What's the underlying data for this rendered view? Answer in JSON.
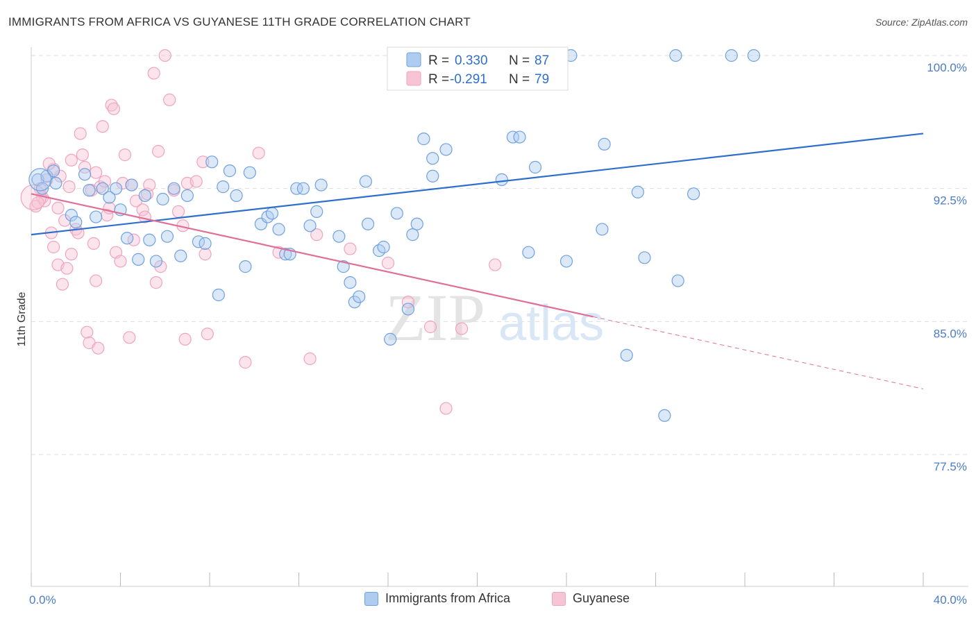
{
  "title": "IMMIGRANTS FROM AFRICA VS GUYANESE 11TH GRADE CORRELATION CHART",
  "source": "Source: ZipAtlas.com",
  "watermark": {
    "zip": "ZIP",
    "atlas": "atlas"
  },
  "colors": {
    "blue": "#6fa0e0",
    "blue_fill": "#aecbf0",
    "blue_line": "#2e6fcc",
    "pink": "#f0a3bd",
    "pink_fill": "#f7c4d5",
    "pink_line": "#e06f98",
    "tick": "#4a7cc9",
    "grid": "#dddddd"
  },
  "legend": [
    {
      "r_label": "R =",
      "r_value": "0.330",
      "n_label": "N =",
      "n_value": "87"
    },
    {
      "r_label": "R =",
      "r_value": "-0.291",
      "n_label": "N =",
      "n_value": "79"
    }
  ],
  "chart_data": {
    "type": "scatter",
    "title": "IMMIGRANTS FROM AFRICA VS GUYANESE 11TH GRADE CORRELATION CHART",
    "xlabel": "",
    "ylabel": "11th Grade",
    "xlim": [
      0,
      40
    ],
    "ylim": [
      71,
      100.5
    ],
    "x_tick_labels": [
      "0.0%",
      "40.0%"
    ],
    "y_ticks": [
      77.5,
      85.0,
      92.5,
      100.0
    ],
    "y_tick_labels": [
      "77.5%",
      "85.0%",
      "92.5%",
      "100.0%"
    ],
    "grid": true,
    "legend_position": "top-center",
    "series": [
      {
        "name": "Immigrants from Africa",
        "trend": {
          "x": [
            0,
            40
          ],
          "y": [
            89.9,
            95.6
          ],
          "dashed_from": null
        },
        "points": [
          [
            0.3,
            93.0
          ],
          [
            0.5,
            92.5
          ],
          [
            0.7,
            93.2
          ],
          [
            1.0,
            93.5
          ],
          [
            1.1,
            92.8
          ],
          [
            1.8,
            91.0
          ],
          [
            2.0,
            90.6
          ],
          [
            2.4,
            93.3
          ],
          [
            2.6,
            92.4
          ],
          [
            2.9,
            90.9
          ],
          [
            3.2,
            92.5
          ],
          [
            3.5,
            92.0
          ],
          [
            3.8,
            92.5
          ],
          [
            4.0,
            91.3
          ],
          [
            4.3,
            89.7
          ],
          [
            4.5,
            92.7
          ],
          [
            4.8,
            88.5
          ],
          [
            5.1,
            92.1
          ],
          [
            5.3,
            89.6
          ],
          [
            5.6,
            88.4
          ],
          [
            5.9,
            91.9
          ],
          [
            6.1,
            89.8
          ],
          [
            6.4,
            92.5
          ],
          [
            6.7,
            88.7
          ],
          [
            7.0,
            92.1
          ],
          [
            7.5,
            89.5
          ],
          [
            7.8,
            89.4
          ],
          [
            8.1,
            94.0
          ],
          [
            8.4,
            86.5
          ],
          [
            8.6,
            92.6
          ],
          [
            8.9,
            93.5
          ],
          [
            9.2,
            92.1
          ],
          [
            9.6,
            88.1
          ],
          [
            9.8,
            93.4
          ],
          [
            10.3,
            90.5
          ],
          [
            10.6,
            90.9
          ],
          [
            10.8,
            91.1
          ],
          [
            11.1,
            90.2
          ],
          [
            11.4,
            88.8
          ],
          [
            11.6,
            88.8
          ],
          [
            11.9,
            92.5
          ],
          [
            12.2,
            92.5
          ],
          [
            12.5,
            90.4
          ],
          [
            12.8,
            91.2
          ],
          [
            13.0,
            92.7
          ],
          [
            13.8,
            89.8
          ],
          [
            14.0,
            88.1
          ],
          [
            14.3,
            87.2
          ],
          [
            14.5,
            86.1
          ],
          [
            14.7,
            86.4
          ],
          [
            15.0,
            92.9
          ],
          [
            15.1,
            90.5
          ],
          [
            15.6,
            89.0
          ],
          [
            15.8,
            89.2
          ],
          [
            16.1,
            84.0
          ],
          [
            16.4,
            91.1
          ],
          [
            16.9,
            85.7
          ],
          [
            17.1,
            89.9
          ],
          [
            17.3,
            90.5
          ],
          [
            17.6,
            95.3
          ],
          [
            18.0,
            93.2
          ],
          [
            18.0,
            94.2
          ],
          [
            18.6,
            94.7
          ],
          [
            18.9,
            100.0
          ],
          [
            19.0,
            100.0
          ],
          [
            19.0,
            100.0
          ],
          [
            19.0,
            100.0
          ],
          [
            19.0,
            100.0
          ],
          [
            21.1,
            93.0
          ],
          [
            21.6,
            95.4
          ],
          [
            21.9,
            95.4
          ],
          [
            22.3,
            88.9
          ],
          [
            22.6,
            93.7
          ],
          [
            22.7,
            100.0
          ],
          [
            24.0,
            88.4
          ],
          [
            24.2,
            100.0
          ],
          [
            25.6,
            90.2
          ],
          [
            25.7,
            95.0
          ],
          [
            26.7,
            83.1
          ],
          [
            27.2,
            92.3
          ],
          [
            27.5,
            88.6
          ],
          [
            28.4,
            79.7
          ],
          [
            28.9,
            100.0
          ],
          [
            29.0,
            87.3
          ],
          [
            29.7,
            92.2
          ],
          [
            31.4,
            100.0
          ],
          [
            32.4,
            100.0
          ]
        ]
      },
      {
        "name": "Guyanese",
        "trend": {
          "x": [
            0,
            40
          ],
          "y": [
            92.2,
            81.2
          ],
          "dashed_from": 25.2
        },
        "points": [
          [
            0.2,
            91.5
          ],
          [
            0.4,
            92.5
          ],
          [
            0.5,
            92.0
          ],
          [
            0.6,
            91.8
          ],
          [
            0.7,
            93.0
          ],
          [
            0.9,
            90.0
          ],
          [
            1.0,
            89.2
          ],
          [
            1.2,
            91.4
          ],
          [
            1.2,
            88.2
          ],
          [
            1.3,
            93.2
          ],
          [
            1.4,
            87.1
          ],
          [
            1.5,
            90.7
          ],
          [
            1.6,
            88.0
          ],
          [
            1.7,
            92.6
          ],
          [
            1.8,
            88.8
          ],
          [
            1.8,
            94.1
          ],
          [
            2.0,
            90.2
          ],
          [
            2.1,
            90.0
          ],
          [
            2.2,
            95.6
          ],
          [
            2.3,
            94.4
          ],
          [
            2.4,
            93.7
          ],
          [
            2.5,
            84.4
          ],
          [
            2.6,
            83.8
          ],
          [
            2.7,
            92.4
          ],
          [
            2.8,
            89.4
          ],
          [
            2.9,
            87.3
          ],
          [
            3.0,
            83.5
          ],
          [
            3.1,
            92.6
          ],
          [
            3.2,
            96.0
          ],
          [
            3.4,
            91.0
          ],
          [
            3.5,
            91.4
          ],
          [
            3.6,
            97.2
          ],
          [
            3.7,
            97.0
          ],
          [
            3.8,
            88.9
          ],
          [
            4.0,
            88.4
          ],
          [
            4.1,
            92.8
          ],
          [
            4.2,
            94.4
          ],
          [
            4.4,
            84.1
          ],
          [
            4.5,
            92.7
          ],
          [
            4.7,
            91.8
          ],
          [
            5.0,
            91.3
          ],
          [
            5.2,
            92.2
          ],
          [
            5.3,
            92.7
          ],
          [
            5.5,
            99.0
          ],
          [
            5.6,
            87.2
          ],
          [
            5.7,
            94.6
          ],
          [
            5.8,
            88.1
          ],
          [
            6.0,
            100.0
          ],
          [
            6.2,
            97.5
          ],
          [
            6.4,
            92.4
          ],
          [
            6.6,
            91.2
          ],
          [
            6.9,
            84.0
          ],
          [
            7.0,
            92.8
          ],
          [
            7.7,
            94.0
          ],
          [
            7.8,
            88.8
          ],
          [
            7.9,
            84.3
          ],
          [
            9.6,
            82.7
          ],
          [
            10.2,
            94.5
          ],
          [
            11.1,
            88.9
          ],
          [
            12.5,
            82.9
          ],
          [
            12.8,
            89.9
          ],
          [
            14.3,
            89.1
          ],
          [
            16.0,
            88.3
          ],
          [
            16.9,
            86.1
          ],
          [
            17.5,
            100.0
          ],
          [
            17.9,
            84.7
          ],
          [
            18.6,
            80.1
          ],
          [
            19.1,
            100.0
          ],
          [
            19.3,
            84.6
          ],
          [
            20.8,
            88.2
          ],
          [
            3.3,
            92.9
          ],
          [
            2.9,
            93.4
          ],
          [
            1.0,
            93.6
          ],
          [
            0.3,
            91.7
          ],
          [
            0.8,
            93.9
          ],
          [
            4.6,
            89.6
          ],
          [
            5.1,
            90.9
          ],
          [
            6.8,
            90.4
          ],
          [
            7.4,
            92.9
          ]
        ]
      }
    ]
  },
  "bottom_legend": [
    {
      "label": "Immigrants from Africa"
    },
    {
      "label": "Guyanese"
    }
  ]
}
